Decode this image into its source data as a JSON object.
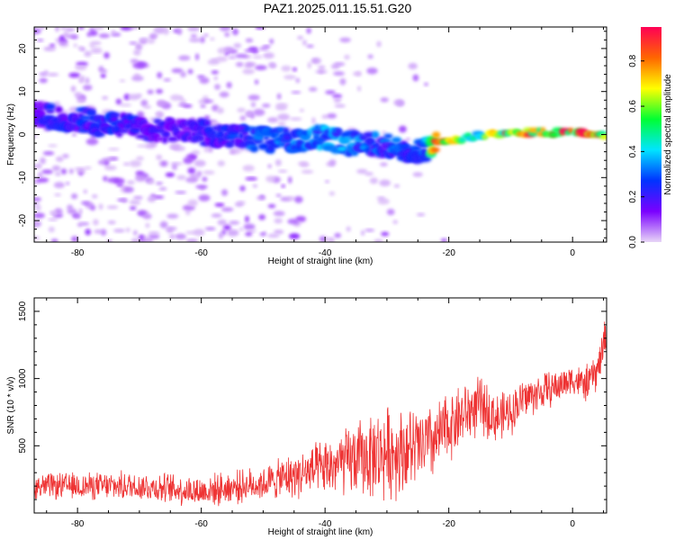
{
  "title": "PAZ1.2025.011.15.51.G20",
  "colors": {
    "snr_line": "#ee3333",
    "colormap": [
      "#e8d6f7",
      "#7a00ff",
      "#0033ff",
      "#00e5ff",
      "#00ff33",
      "#ffff00",
      "#ff6600",
      "#ff0055"
    ]
  },
  "chart_data": [
    {
      "type": "heatmap",
      "xlabel": "Height of straight line (km)",
      "ylabel": "Frequency (Hz)",
      "xlim": [
        -87,
        5.5
      ],
      "ylim": [
        -25,
        25
      ],
      "x_ticks": [
        -80,
        -60,
        -40,
        -20,
        0
      ],
      "y_ticks": [
        -20,
        -10,
        0,
        10,
        20
      ],
      "colorbar": {
        "label": "Normalized spectral amplitude",
        "range": [
          0,
          0.95
        ],
        "ticks": [
          "0.0",
          "0.2",
          "0.4",
          "0.6",
          "0.8"
        ],
        "tick_values": [
          0,
          0.2,
          0.4,
          0.6,
          0.8
        ]
      },
      "ridge": {
        "x": [
          -87,
          -84,
          -80,
          -76,
          -72,
          -68,
          -64,
          -60,
          -56,
          -52,
          -48,
          -44,
          -40,
          -36,
          -32,
          -28,
          -24,
          -22,
          -18,
          -14,
          -10,
          -6,
          -2,
          2,
          5.5
        ],
        "freq": [
          5,
          4,
          3.5,
          2.5,
          2,
          1.5,
          1,
          0.5,
          -0.5,
          -1,
          -1.5,
          -1,
          -0.5,
          -2,
          -2.5,
          -3,
          -4,
          -2,
          -1,
          0,
          0.5,
          0.5,
          0.5,
          0.5,
          0
        ],
        "amplitude": [
          0.2,
          0.25,
          0.25,
          0.28,
          0.25,
          0.22,
          0.2,
          0.22,
          0.25,
          0.3,
          0.35,
          0.35,
          0.38,
          0.35,
          0.32,
          0.3,
          0.3,
          0.9,
          0.55,
          0.6,
          0.9,
          0.85,
          0.95,
          0.9,
          0.8
        ]
      }
    },
    {
      "type": "line",
      "xlabel": "Height of straight line (km)",
      "ylabel": "SNR (10 * v/v)",
      "xlim": [
        -87,
        5.5
      ],
      "ylim": [
        0,
        1600
      ],
      "x_ticks": [
        -80,
        -60,
        -40,
        -20,
        0
      ],
      "y_ticks": [
        500,
        1000,
        1500
      ],
      "trend": {
        "x": [
          -87,
          -80,
          -70,
          -60,
          -50,
          -45,
          -40,
          -35,
          -30,
          -25,
          -22,
          -20,
          -18,
          -15,
          -12,
          -10,
          -8,
          -5,
          -2,
          0,
          2,
          4,
          5.5
        ],
        "y": [
          200,
          200,
          200,
          160,
          220,
          280,
          330,
          400,
          450,
          480,
          540,
          650,
          720,
          800,
          700,
          750,
          850,
          900,
          950,
          1000,
          950,
          1050,
          1350
        ]
      },
      "noise_amplitude": {
        "x": [
          -87,
          -50,
          -40,
          -30,
          -20,
          -10,
          0,
          5.5
        ],
        "y": [
          90,
          120,
          200,
          330,
          250,
          160,
          110,
          150
        ]
      }
    }
  ]
}
